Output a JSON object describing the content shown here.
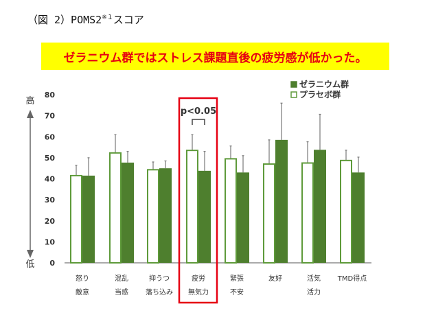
{
  "figure_title": "（図 2）POMS2",
  "figure_title_sup": "※１",
  "figure_title_suffix": "スコア",
  "banner_text": "ゼラニウム群ではストレス課題直後の疲労感が低かった。",
  "colors": {
    "geranium": "#4e7f2e",
    "placebo_fill": "#ffffff",
    "placebo_edge": "#5e9a3a",
    "highlight": "#e60012",
    "banner": "#ffff00"
  },
  "axis_arrow": {
    "high": "高",
    "low": "低"
  },
  "chart_data": {
    "type": "bar",
    "categories": [
      [
        "怒り",
        "敵意"
      ],
      [
        "混乱",
        "当惑"
      ],
      [
        "抑うつ",
        "落ち込み"
      ],
      [
        "疲労",
        "無気力"
      ],
      [
        "緊張",
        "不安"
      ],
      [
        "友好",
        ""
      ],
      [
        "活気",
        "活力"
      ],
      [
        "TMD得点",
        ""
      ]
    ],
    "ylim": [
      0,
      80
    ],
    "yticks": [
      0,
      10,
      20,
      30,
      40,
      50,
      60,
      70,
      80
    ],
    "legend_placement": "top-right",
    "series": [
      {
        "name": "プラセボ群",
        "values": [
          41.5,
          52.3,
          44.3,
          53.5,
          49.5,
          47,
          47.5,
          48.7
        ],
        "error_top": [
          46.4,
          61,
          48,
          61,
          55.6,
          58.5,
          57.6,
          53.6
        ]
      },
      {
        "name": "ゼラニウム群",
        "values": [
          41.5,
          47.7,
          45,
          43.8,
          43,
          58.5,
          53.8,
          43
        ],
        "error_top": [
          50,
          53,
          48.5,
          53,
          51,
          76,
          70.7,
          50.3
        ]
      }
    ],
    "annotation": {
      "text": "p<0.05",
      "category_index": 3
    }
  }
}
